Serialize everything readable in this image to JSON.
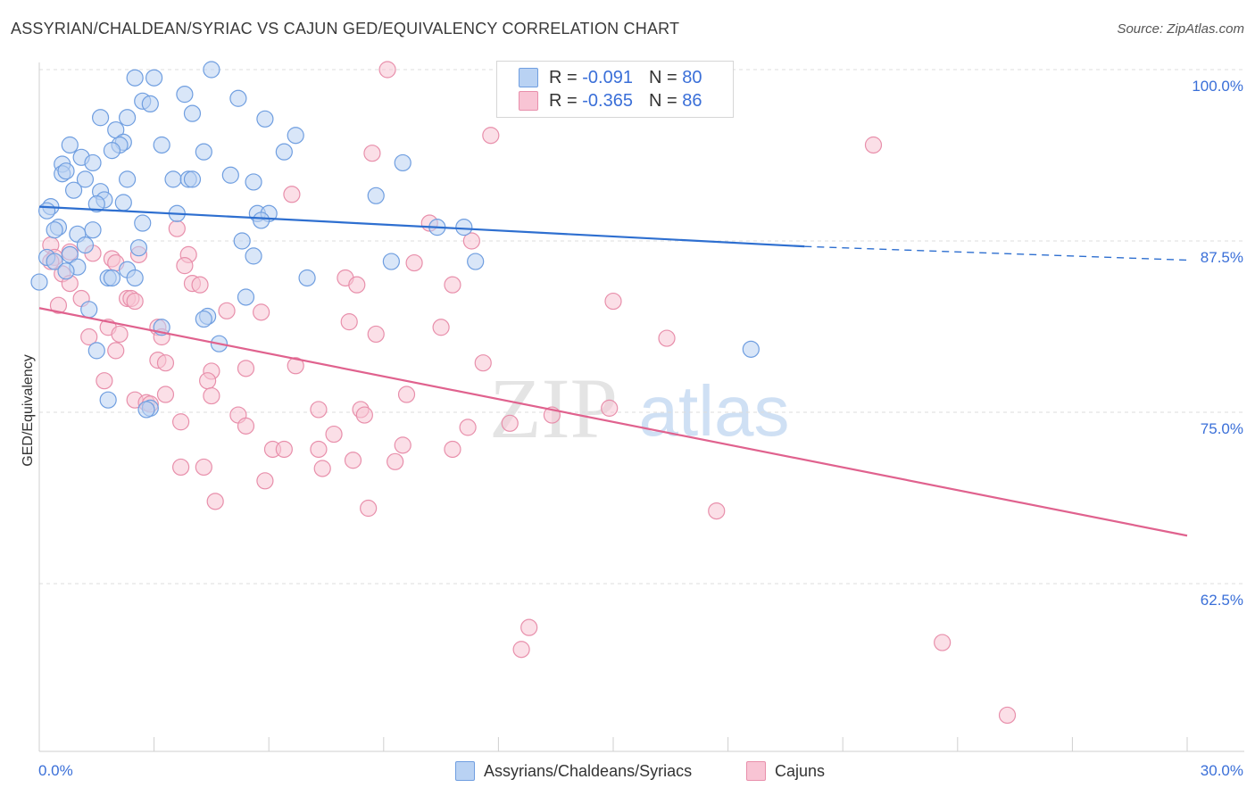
{
  "header": {
    "title": "ASSYRIAN/CHALDEAN/SYRIAC VS CAJUN GED/EQUIVALENCY CORRELATION CHART",
    "source": "Source: ZipAtlas.com"
  },
  "watermark": {
    "zip": "ZIP",
    "atlas": "atlas"
  },
  "legend_stats": [
    {
      "r_label": "R =",
      "r_value": "-0.091",
      "n_label": "N =",
      "n_value": "80"
    },
    {
      "r_label": "R =",
      "r_value": "-0.365",
      "n_label": "N =",
      "n_value": "86"
    }
  ],
  "chart_data": {
    "type": "scatter",
    "title": "ASSYRIAN/CHALDEAN/SYRIAC VS CAJUN GED/EQUIVALENCY CORRELATION CHART",
    "xlabel": "",
    "ylabel": "GED/Equivalency",
    "xlim": [
      0,
      30
    ],
    "ylim": [
      50,
      100
    ],
    "x_tick_labels": [
      {
        "value": 0,
        "label": "0.0%"
      },
      {
        "value": 30,
        "label": "30.0%"
      }
    ],
    "y_tick_labels": [
      {
        "value": 100,
        "label": "100.0%"
      },
      {
        "value": 87.5,
        "label": "87.5%"
      },
      {
        "value": 75,
        "label": "75.0%"
      },
      {
        "value": 62.5,
        "label": "62.5%"
      }
    ],
    "grid": true,
    "legend_position": "bottom",
    "colors": {
      "Assyrians/Chaldeans/Syriacs": {
        "fill": "#b9d2f3",
        "stroke": "#6f9ee0",
        "line": "#2e6fd0"
      },
      "Cajuns": {
        "fill": "#f8c4d4",
        "stroke": "#e88fab",
        "line": "#e0628e"
      }
    },
    "series": [
      {
        "name": "Assyrians/Chaldeans/Syriacs",
        "r": -0.091,
        "n": 80,
        "trend": {
          "x": [
            0,
            20
          ],
          "y": [
            90,
            87.1
          ],
          "dashed_to": [
            30,
            86.1
          ]
        },
        "points": [
          [
            2.5,
            99.4
          ],
          [
            3.0,
            99.4
          ],
          [
            4.5,
            100.0
          ],
          [
            2.7,
            97.7
          ],
          [
            3.8,
            98.2
          ],
          [
            5.2,
            97.9
          ],
          [
            2.9,
            97.5
          ],
          [
            1.6,
            96.5
          ],
          [
            2.3,
            96.5
          ],
          [
            4.0,
            96.8
          ],
          [
            5.9,
            96.4
          ],
          [
            2.0,
            95.6
          ],
          [
            2.2,
            94.7
          ],
          [
            2.1,
            94.5
          ],
          [
            3.2,
            94.5
          ],
          [
            1.9,
            94.1
          ],
          [
            4.3,
            94.0
          ],
          [
            6.4,
            94.0
          ],
          [
            6.7,
            95.2
          ],
          [
            0.8,
            94.5
          ],
          [
            1.1,
            93.6
          ],
          [
            1.4,
            93.2
          ],
          [
            0.6,
            93.1
          ],
          [
            9.5,
            93.2
          ],
          [
            0.6,
            92.4
          ],
          [
            0.7,
            92.6
          ],
          [
            1.2,
            92.0
          ],
          [
            2.3,
            92.0
          ],
          [
            3.5,
            92.0
          ],
          [
            3.9,
            92.0
          ],
          [
            4.0,
            92.0
          ],
          [
            5.0,
            92.3
          ],
          [
            5.6,
            91.8
          ],
          [
            0.9,
            91.2
          ],
          [
            1.6,
            91.1
          ],
          [
            8.8,
            90.8
          ],
          [
            1.7,
            90.5
          ],
          [
            1.5,
            90.2
          ],
          [
            2.2,
            90.3
          ],
          [
            0.3,
            90.0
          ],
          [
            0.2,
            89.7
          ],
          [
            3.6,
            89.5
          ],
          [
            5.7,
            89.5
          ],
          [
            6.0,
            89.5
          ],
          [
            5.8,
            89.0
          ],
          [
            2.7,
            88.8
          ],
          [
            0.5,
            88.5
          ],
          [
            0.4,
            88.3
          ],
          [
            1.4,
            88.3
          ],
          [
            1.0,
            88.0
          ],
          [
            10.4,
            88.5
          ],
          [
            11.1,
            88.5
          ],
          [
            5.3,
            87.5
          ],
          [
            1.2,
            87.2
          ],
          [
            2.6,
            87.0
          ],
          [
            0.2,
            86.3
          ],
          [
            0.8,
            86.5
          ],
          [
            5.6,
            86.4
          ],
          [
            0.4,
            86.0
          ],
          [
            9.2,
            86.0
          ],
          [
            1.0,
            85.6
          ],
          [
            0.7,
            85.3
          ],
          [
            11.4,
            86.0
          ],
          [
            2.3,
            85.4
          ],
          [
            1.8,
            84.8
          ],
          [
            1.9,
            84.8
          ],
          [
            2.5,
            84.8
          ],
          [
            7.0,
            84.8
          ],
          [
            0.0,
            84.5
          ],
          [
            5.4,
            83.4
          ],
          [
            1.3,
            82.5
          ],
          [
            4.4,
            82.0
          ],
          [
            4.3,
            81.8
          ],
          [
            3.2,
            81.2
          ],
          [
            4.7,
            80.0
          ],
          [
            1.5,
            79.5
          ],
          [
            18.6,
            79.6
          ],
          [
            1.8,
            75.9
          ],
          [
            2.9,
            75.3
          ],
          [
            2.8,
            75.2
          ]
        ]
      },
      {
        "name": "Cajuns",
        "r": -0.365,
        "n": 86,
        "trend": {
          "x": [
            0,
            30
          ],
          "y": [
            82.6,
            66.0
          ]
        },
        "points": [
          [
            9.1,
            100.0
          ],
          [
            11.8,
            95.2
          ],
          [
            21.8,
            94.5
          ],
          [
            8.7,
            93.9
          ],
          [
            6.6,
            90.9
          ],
          [
            10.2,
            88.8
          ],
          [
            3.6,
            88.4
          ],
          [
            11.3,
            87.5
          ],
          [
            0.3,
            87.2
          ],
          [
            0.8,
            86.7
          ],
          [
            1.4,
            86.6
          ],
          [
            2.6,
            86.5
          ],
          [
            3.9,
            86.5
          ],
          [
            0.4,
            86.3
          ],
          [
            1.9,
            86.2
          ],
          [
            0.3,
            86.0
          ],
          [
            2.0,
            85.9
          ],
          [
            9.8,
            85.9
          ],
          [
            3.8,
            85.7
          ],
          [
            0.6,
            85.1
          ],
          [
            8.0,
            84.8
          ],
          [
            0.8,
            84.4
          ],
          [
            4.0,
            84.4
          ],
          [
            4.2,
            84.3
          ],
          [
            8.3,
            84.3
          ],
          [
            10.8,
            84.3
          ],
          [
            1.1,
            83.3
          ],
          [
            2.3,
            83.3
          ],
          [
            2.4,
            83.3
          ],
          [
            2.5,
            83.1
          ],
          [
            15.0,
            83.1
          ],
          [
            0.5,
            82.8
          ],
          [
            4.9,
            82.4
          ],
          [
            5.8,
            82.3
          ],
          [
            8.1,
            81.6
          ],
          [
            1.8,
            81.2
          ],
          [
            3.1,
            81.2
          ],
          [
            10.5,
            81.2
          ],
          [
            2.1,
            80.7
          ],
          [
            8.8,
            80.7
          ],
          [
            1.3,
            80.5
          ],
          [
            3.2,
            80.5
          ],
          [
            16.4,
            80.4
          ],
          [
            2.0,
            79.5
          ],
          [
            3.1,
            78.8
          ],
          [
            3.3,
            78.6
          ],
          [
            6.7,
            78.4
          ],
          [
            11.6,
            78.6
          ],
          [
            5.4,
            78.2
          ],
          [
            4.5,
            78.0
          ],
          [
            1.7,
            77.3
          ],
          [
            4.4,
            77.3
          ],
          [
            3.3,
            76.3
          ],
          [
            4.5,
            76.2
          ],
          [
            9.6,
            76.3
          ],
          [
            2.5,
            75.9
          ],
          [
            2.8,
            75.7
          ],
          [
            2.9,
            75.6
          ],
          [
            7.3,
            75.2
          ],
          [
            8.4,
            75.2
          ],
          [
            14.9,
            75.3
          ],
          [
            5.2,
            74.8
          ],
          [
            8.5,
            74.8
          ],
          [
            13.4,
            74.8
          ],
          [
            3.7,
            74.3
          ],
          [
            12.3,
            74.2
          ],
          [
            5.4,
            74.0
          ],
          [
            11.2,
            73.9
          ],
          [
            7.7,
            73.4
          ],
          [
            9.5,
            72.6
          ],
          [
            6.1,
            72.3
          ],
          [
            6.4,
            72.3
          ],
          [
            7.3,
            72.3
          ],
          [
            10.8,
            72.3
          ],
          [
            8.2,
            71.5
          ],
          [
            9.3,
            71.4
          ],
          [
            3.7,
            71.0
          ],
          [
            4.3,
            71.0
          ],
          [
            7.4,
            70.9
          ],
          [
            5.9,
            70.0
          ],
          [
            4.6,
            68.5
          ],
          [
            8.6,
            68.0
          ],
          [
            17.7,
            67.8
          ],
          [
            12.8,
            59.3
          ],
          [
            12.6,
            57.7
          ],
          [
            23.6,
            58.2
          ],
          [
            25.3,
            52.9
          ]
        ]
      }
    ]
  },
  "legend_bottom": [
    {
      "label": "Assyrians/Chaldeans/Syriacs"
    },
    {
      "label": "Cajuns"
    }
  ]
}
